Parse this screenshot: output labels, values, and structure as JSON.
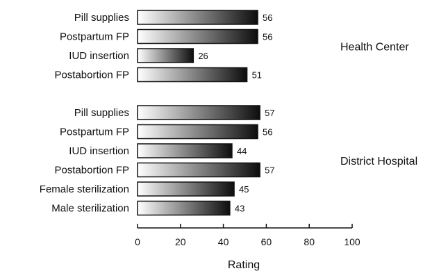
{
  "chart_data": {
    "type": "bar",
    "orientation": "horizontal",
    "xlabel": "Rating",
    "xlim": [
      0,
      100
    ],
    "xticks": [
      0,
      20,
      40,
      60,
      80,
      100
    ],
    "grid": false,
    "groups": [
      {
        "name": "Health Center",
        "categories": [
          "Pill supplies",
          "Postpartum FP",
          "IUD insertion",
          "Postabortion FP"
        ],
        "values": [
          56,
          56,
          26,
          51
        ]
      },
      {
        "name": "District Hospital",
        "categories": [
          "Pill supplies",
          "Postpartum FP",
          "IUD insertion",
          "Postabortion FP",
          "Female sterilization",
          "Male sterilization"
        ],
        "values": [
          57,
          56,
          44,
          57,
          45,
          43
        ]
      }
    ],
    "bar_gradient": [
      "#ffffff",
      "#0d0d0d"
    ]
  }
}
